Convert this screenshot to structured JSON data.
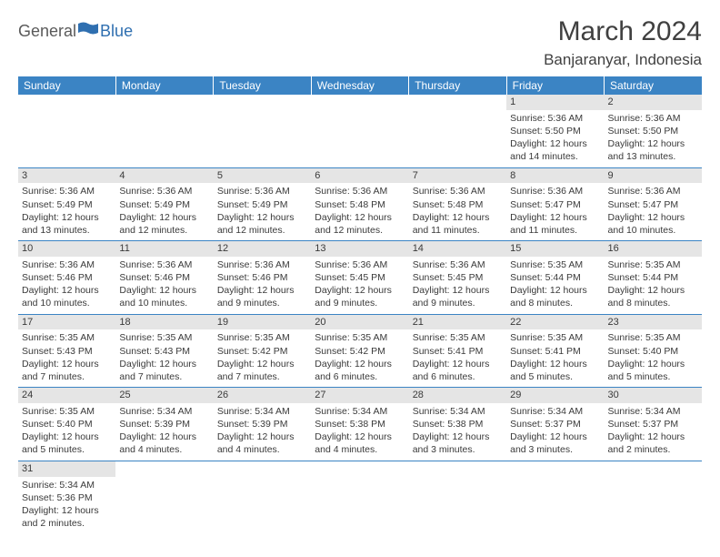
{
  "logo": {
    "text1": "General",
    "text2": "Blue"
  },
  "title": "March 2024",
  "location": "Banjaranyar, Indonesia",
  "colors": {
    "header_bg": "#3b84c4",
    "header_fg": "#ffffff",
    "daynum_bg": "#e5e5e5",
    "text": "#3a3a3a",
    "rule": "#3b84c4",
    "logo_gray": "#5a5a5a",
    "logo_blue": "#2f6fb0"
  },
  "weekdays": [
    "Sunday",
    "Monday",
    "Tuesday",
    "Wednesday",
    "Thursday",
    "Friday",
    "Saturday"
  ],
  "weeks": [
    [
      null,
      null,
      null,
      null,
      null,
      {
        "n": "1",
        "sr": "5:36 AM",
        "ss": "5:50 PM",
        "dl": "12 hours and 14 minutes."
      },
      {
        "n": "2",
        "sr": "5:36 AM",
        "ss": "5:50 PM",
        "dl": "12 hours and 13 minutes."
      }
    ],
    [
      {
        "n": "3",
        "sr": "5:36 AM",
        "ss": "5:49 PM",
        "dl": "12 hours and 13 minutes."
      },
      {
        "n": "4",
        "sr": "5:36 AM",
        "ss": "5:49 PM",
        "dl": "12 hours and 12 minutes."
      },
      {
        "n": "5",
        "sr": "5:36 AM",
        "ss": "5:49 PM",
        "dl": "12 hours and 12 minutes."
      },
      {
        "n": "6",
        "sr": "5:36 AM",
        "ss": "5:48 PM",
        "dl": "12 hours and 12 minutes."
      },
      {
        "n": "7",
        "sr": "5:36 AM",
        "ss": "5:48 PM",
        "dl": "12 hours and 11 minutes."
      },
      {
        "n": "8",
        "sr": "5:36 AM",
        "ss": "5:47 PM",
        "dl": "12 hours and 11 minutes."
      },
      {
        "n": "9",
        "sr": "5:36 AM",
        "ss": "5:47 PM",
        "dl": "12 hours and 10 minutes."
      }
    ],
    [
      {
        "n": "10",
        "sr": "5:36 AM",
        "ss": "5:46 PM",
        "dl": "12 hours and 10 minutes."
      },
      {
        "n": "11",
        "sr": "5:36 AM",
        "ss": "5:46 PM",
        "dl": "12 hours and 10 minutes."
      },
      {
        "n": "12",
        "sr": "5:36 AM",
        "ss": "5:46 PM",
        "dl": "12 hours and 9 minutes."
      },
      {
        "n": "13",
        "sr": "5:36 AM",
        "ss": "5:45 PM",
        "dl": "12 hours and 9 minutes."
      },
      {
        "n": "14",
        "sr": "5:36 AM",
        "ss": "5:45 PM",
        "dl": "12 hours and 9 minutes."
      },
      {
        "n": "15",
        "sr": "5:35 AM",
        "ss": "5:44 PM",
        "dl": "12 hours and 8 minutes."
      },
      {
        "n": "16",
        "sr": "5:35 AM",
        "ss": "5:44 PM",
        "dl": "12 hours and 8 minutes."
      }
    ],
    [
      {
        "n": "17",
        "sr": "5:35 AM",
        "ss": "5:43 PM",
        "dl": "12 hours and 7 minutes."
      },
      {
        "n": "18",
        "sr": "5:35 AM",
        "ss": "5:43 PM",
        "dl": "12 hours and 7 minutes."
      },
      {
        "n": "19",
        "sr": "5:35 AM",
        "ss": "5:42 PM",
        "dl": "12 hours and 7 minutes."
      },
      {
        "n": "20",
        "sr": "5:35 AM",
        "ss": "5:42 PM",
        "dl": "12 hours and 6 minutes."
      },
      {
        "n": "21",
        "sr": "5:35 AM",
        "ss": "5:41 PM",
        "dl": "12 hours and 6 minutes."
      },
      {
        "n": "22",
        "sr": "5:35 AM",
        "ss": "5:41 PM",
        "dl": "12 hours and 5 minutes."
      },
      {
        "n": "23",
        "sr": "5:35 AM",
        "ss": "5:40 PM",
        "dl": "12 hours and 5 minutes."
      }
    ],
    [
      {
        "n": "24",
        "sr": "5:35 AM",
        "ss": "5:40 PM",
        "dl": "12 hours and 5 minutes."
      },
      {
        "n": "25",
        "sr": "5:34 AM",
        "ss": "5:39 PM",
        "dl": "12 hours and 4 minutes."
      },
      {
        "n": "26",
        "sr": "5:34 AM",
        "ss": "5:39 PM",
        "dl": "12 hours and 4 minutes."
      },
      {
        "n": "27",
        "sr": "5:34 AM",
        "ss": "5:38 PM",
        "dl": "12 hours and 4 minutes."
      },
      {
        "n": "28",
        "sr": "5:34 AM",
        "ss": "5:38 PM",
        "dl": "12 hours and 3 minutes."
      },
      {
        "n": "29",
        "sr": "5:34 AM",
        "ss": "5:37 PM",
        "dl": "12 hours and 3 minutes."
      },
      {
        "n": "30",
        "sr": "5:34 AM",
        "ss": "5:37 PM",
        "dl": "12 hours and 2 minutes."
      }
    ],
    [
      {
        "n": "31",
        "sr": "5:34 AM",
        "ss": "5:36 PM",
        "dl": "12 hours and 2 minutes."
      },
      null,
      null,
      null,
      null,
      null,
      null
    ]
  ],
  "labels": {
    "sunrise": "Sunrise:",
    "sunset": "Sunset:",
    "daylight": "Daylight:"
  }
}
